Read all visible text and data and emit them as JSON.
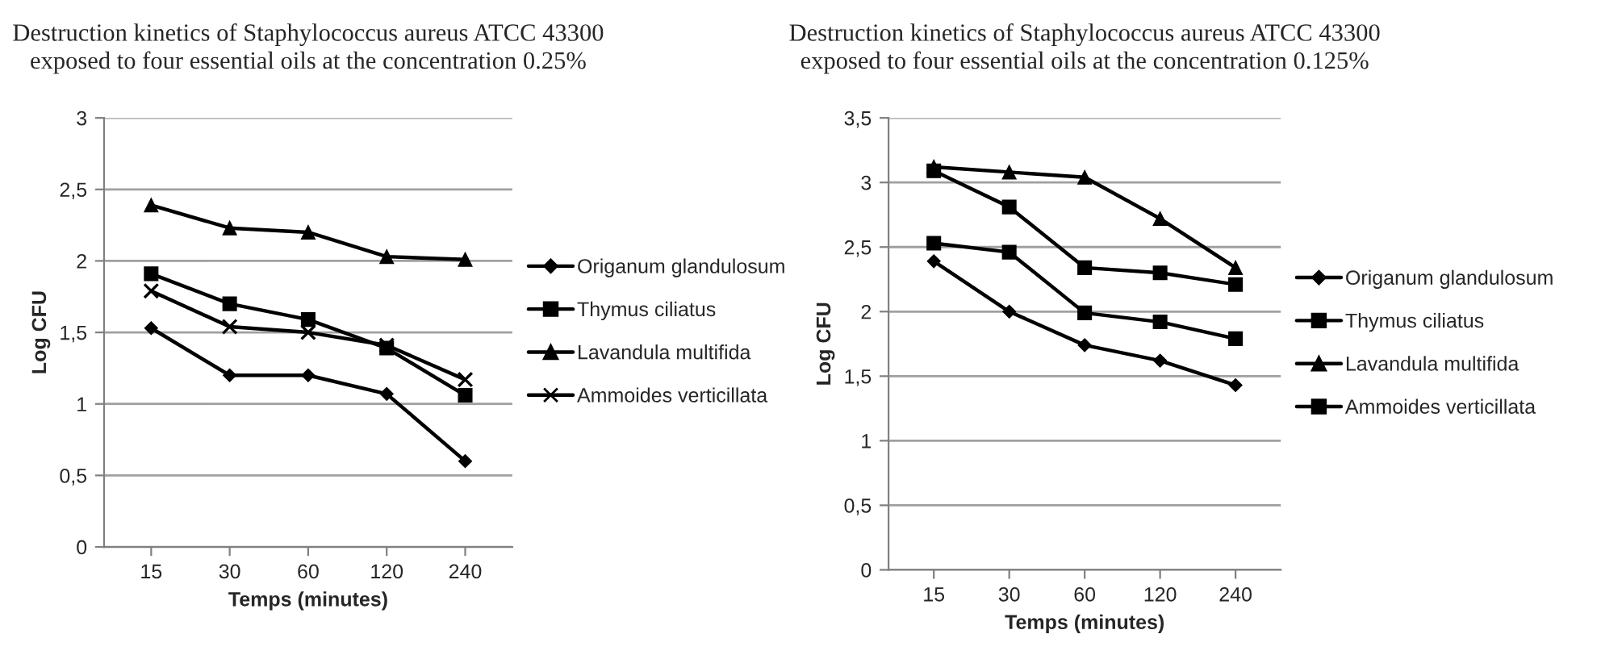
{
  "chart_data": [
    {
      "type": "line",
      "title": "Destruction kinetics of Staphylococcus aureus ATCC 43300\nexposed to four essential oils at the concentration 0.25%",
      "xlabel": "Temps (minutes)",
      "ylabel": "Log CFU",
      "categories": [
        "15",
        "30",
        "60",
        "120",
        "240"
      ],
      "ylim": [
        0,
        3
      ],
      "yticks": [
        0,
        {
          "value": 0.5,
          "label": "0,5"
        },
        1,
        {
          "value": 1.5,
          "label": "1,5"
        },
        2,
        {
          "value": 2.5,
          "label": "2,5"
        },
        3
      ],
      "grid": "y",
      "legend": "right",
      "series": [
        {
          "name": "Origanum glandulosum",
          "color": "#000000",
          "marker": "diamond",
          "values": [
            1.53,
            1.2,
            1.2,
            1.07,
            0.6
          ]
        },
        {
          "name": "Thymus ciliatus",
          "color": "#000000",
          "marker": "square",
          "values": [
            1.91,
            1.7,
            1.59,
            1.39,
            1.06
          ]
        },
        {
          "name": "Lavandula multifida",
          "color": "#000000",
          "marker": "triangle",
          "values": [
            2.39,
            2.23,
            2.2,
            2.03,
            2.01
          ]
        },
        {
          "name": "Ammoides verticillata",
          "color": "#000000",
          "marker": "cross",
          "values": [
            1.79,
            1.54,
            1.5,
            1.41,
            1.17
          ]
        }
      ]
    },
    {
      "type": "line",
      "title": "Destruction kinetics of Staphylococcus aureus ATCC 43300\nexposed to four essential oils at the concentration 0.125%",
      "xlabel": "Temps (minutes)",
      "ylabel": "Log CFU",
      "categories": [
        "15",
        "30",
        "60",
        "120",
        "240"
      ],
      "ylim": [
        0,
        3.5
      ],
      "yticks": [
        0,
        {
          "value": 0.5,
          "label": "0,5"
        },
        1,
        {
          "value": 1.5,
          "label": "1,5"
        },
        2,
        {
          "value": 2.5,
          "label": "2,5"
        },
        3,
        {
          "value": 3.5,
          "label": "3,5"
        }
      ],
      "grid": "y",
      "legend": "right",
      "series": [
        {
          "name": "Origanum glandulosum",
          "color": "#000000",
          "marker": "diamond",
          "values": [
            2.39,
            2.0,
            1.74,
            1.62,
            1.43
          ]
        },
        {
          "name": "Thymus ciliatus",
          "color": "#000000",
          "marker": "square",
          "values": [
            3.09,
            2.81,
            2.34,
            2.3,
            2.21
          ]
        },
        {
          "name": "Lavandula multifida",
          "color": "#000000",
          "marker": "triangle",
          "values": [
            3.12,
            3.08,
            3.04,
            2.72,
            2.34
          ]
        },
        {
          "name": "Ammoides verticillata",
          "color": "#000000",
          "marker": "square",
          "values": [
            2.53,
            2.46,
            1.99,
            1.92,
            1.79
          ]
        }
      ]
    }
  ]
}
